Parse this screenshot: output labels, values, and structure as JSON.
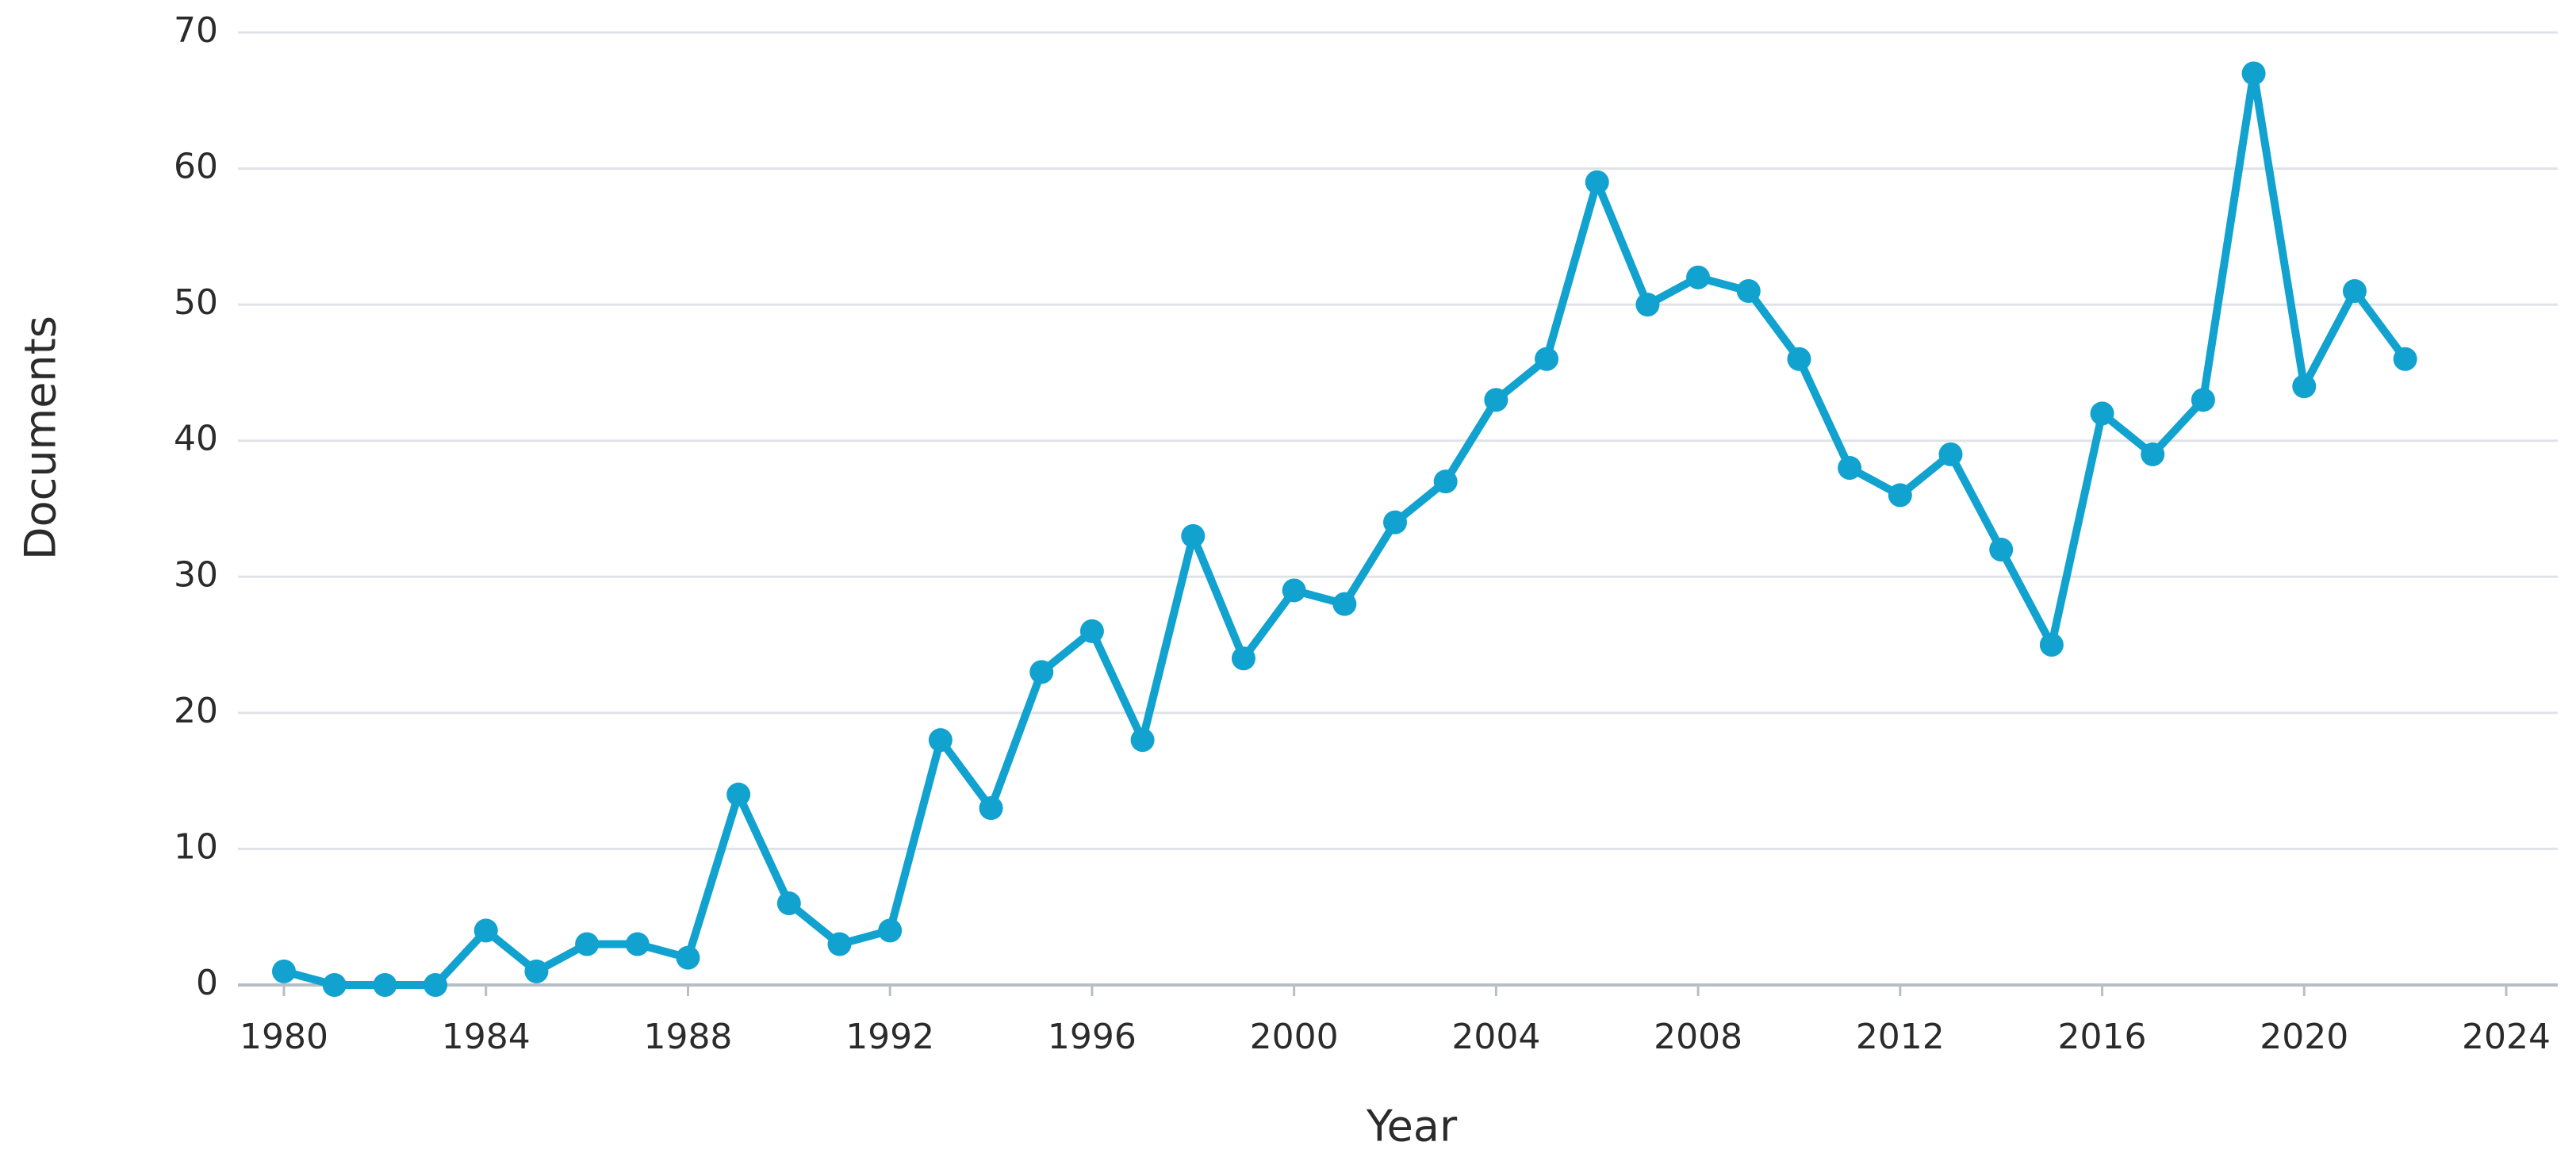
{
  "chart_data": {
    "type": "line",
    "x_label": "Year",
    "y_label": "Documents",
    "x": [
      1980,
      1981,
      1982,
      1983,
      1984,
      1985,
      1986,
      1987,
      1988,
      1989,
      1990,
      1991,
      1992,
      1993,
      1994,
      1995,
      1996,
      1997,
      1998,
      1999,
      2000,
      2001,
      2002,
      2003,
      2004,
      2005,
      2006,
      2007,
      2008,
      2009,
      2010,
      2011,
      2012,
      2013,
      2014,
      2015,
      2016,
      2017,
      2018,
      2019,
      2020,
      2021,
      2022
    ],
    "series": [
      {
        "name": "Documents",
        "color": "#12a2d0",
        "values": [
          1,
          0,
          0,
          0,
          4,
          1,
          3,
          3,
          2,
          14,
          6,
          3,
          4,
          18,
          13,
          23,
          26,
          18,
          33,
          24,
          29,
          28,
          34,
          37,
          43,
          46,
          59,
          50,
          52,
          51,
          46,
          38,
          36,
          39,
          32,
          25,
          42,
          39,
          43,
          67,
          44,
          51,
          46
        ]
      }
    ],
    "xlim": [
      1980,
      2024
    ],
    "xticks": [
      1980,
      1984,
      1988,
      1992,
      1996,
      2000,
      2004,
      2008,
      2012,
      2016,
      2020,
      2024
    ],
    "ylim": [
      0,
      70
    ],
    "yticks": [
      0,
      10,
      20,
      30,
      40,
      50,
      60,
      70
    ],
    "grid": true
  }
}
